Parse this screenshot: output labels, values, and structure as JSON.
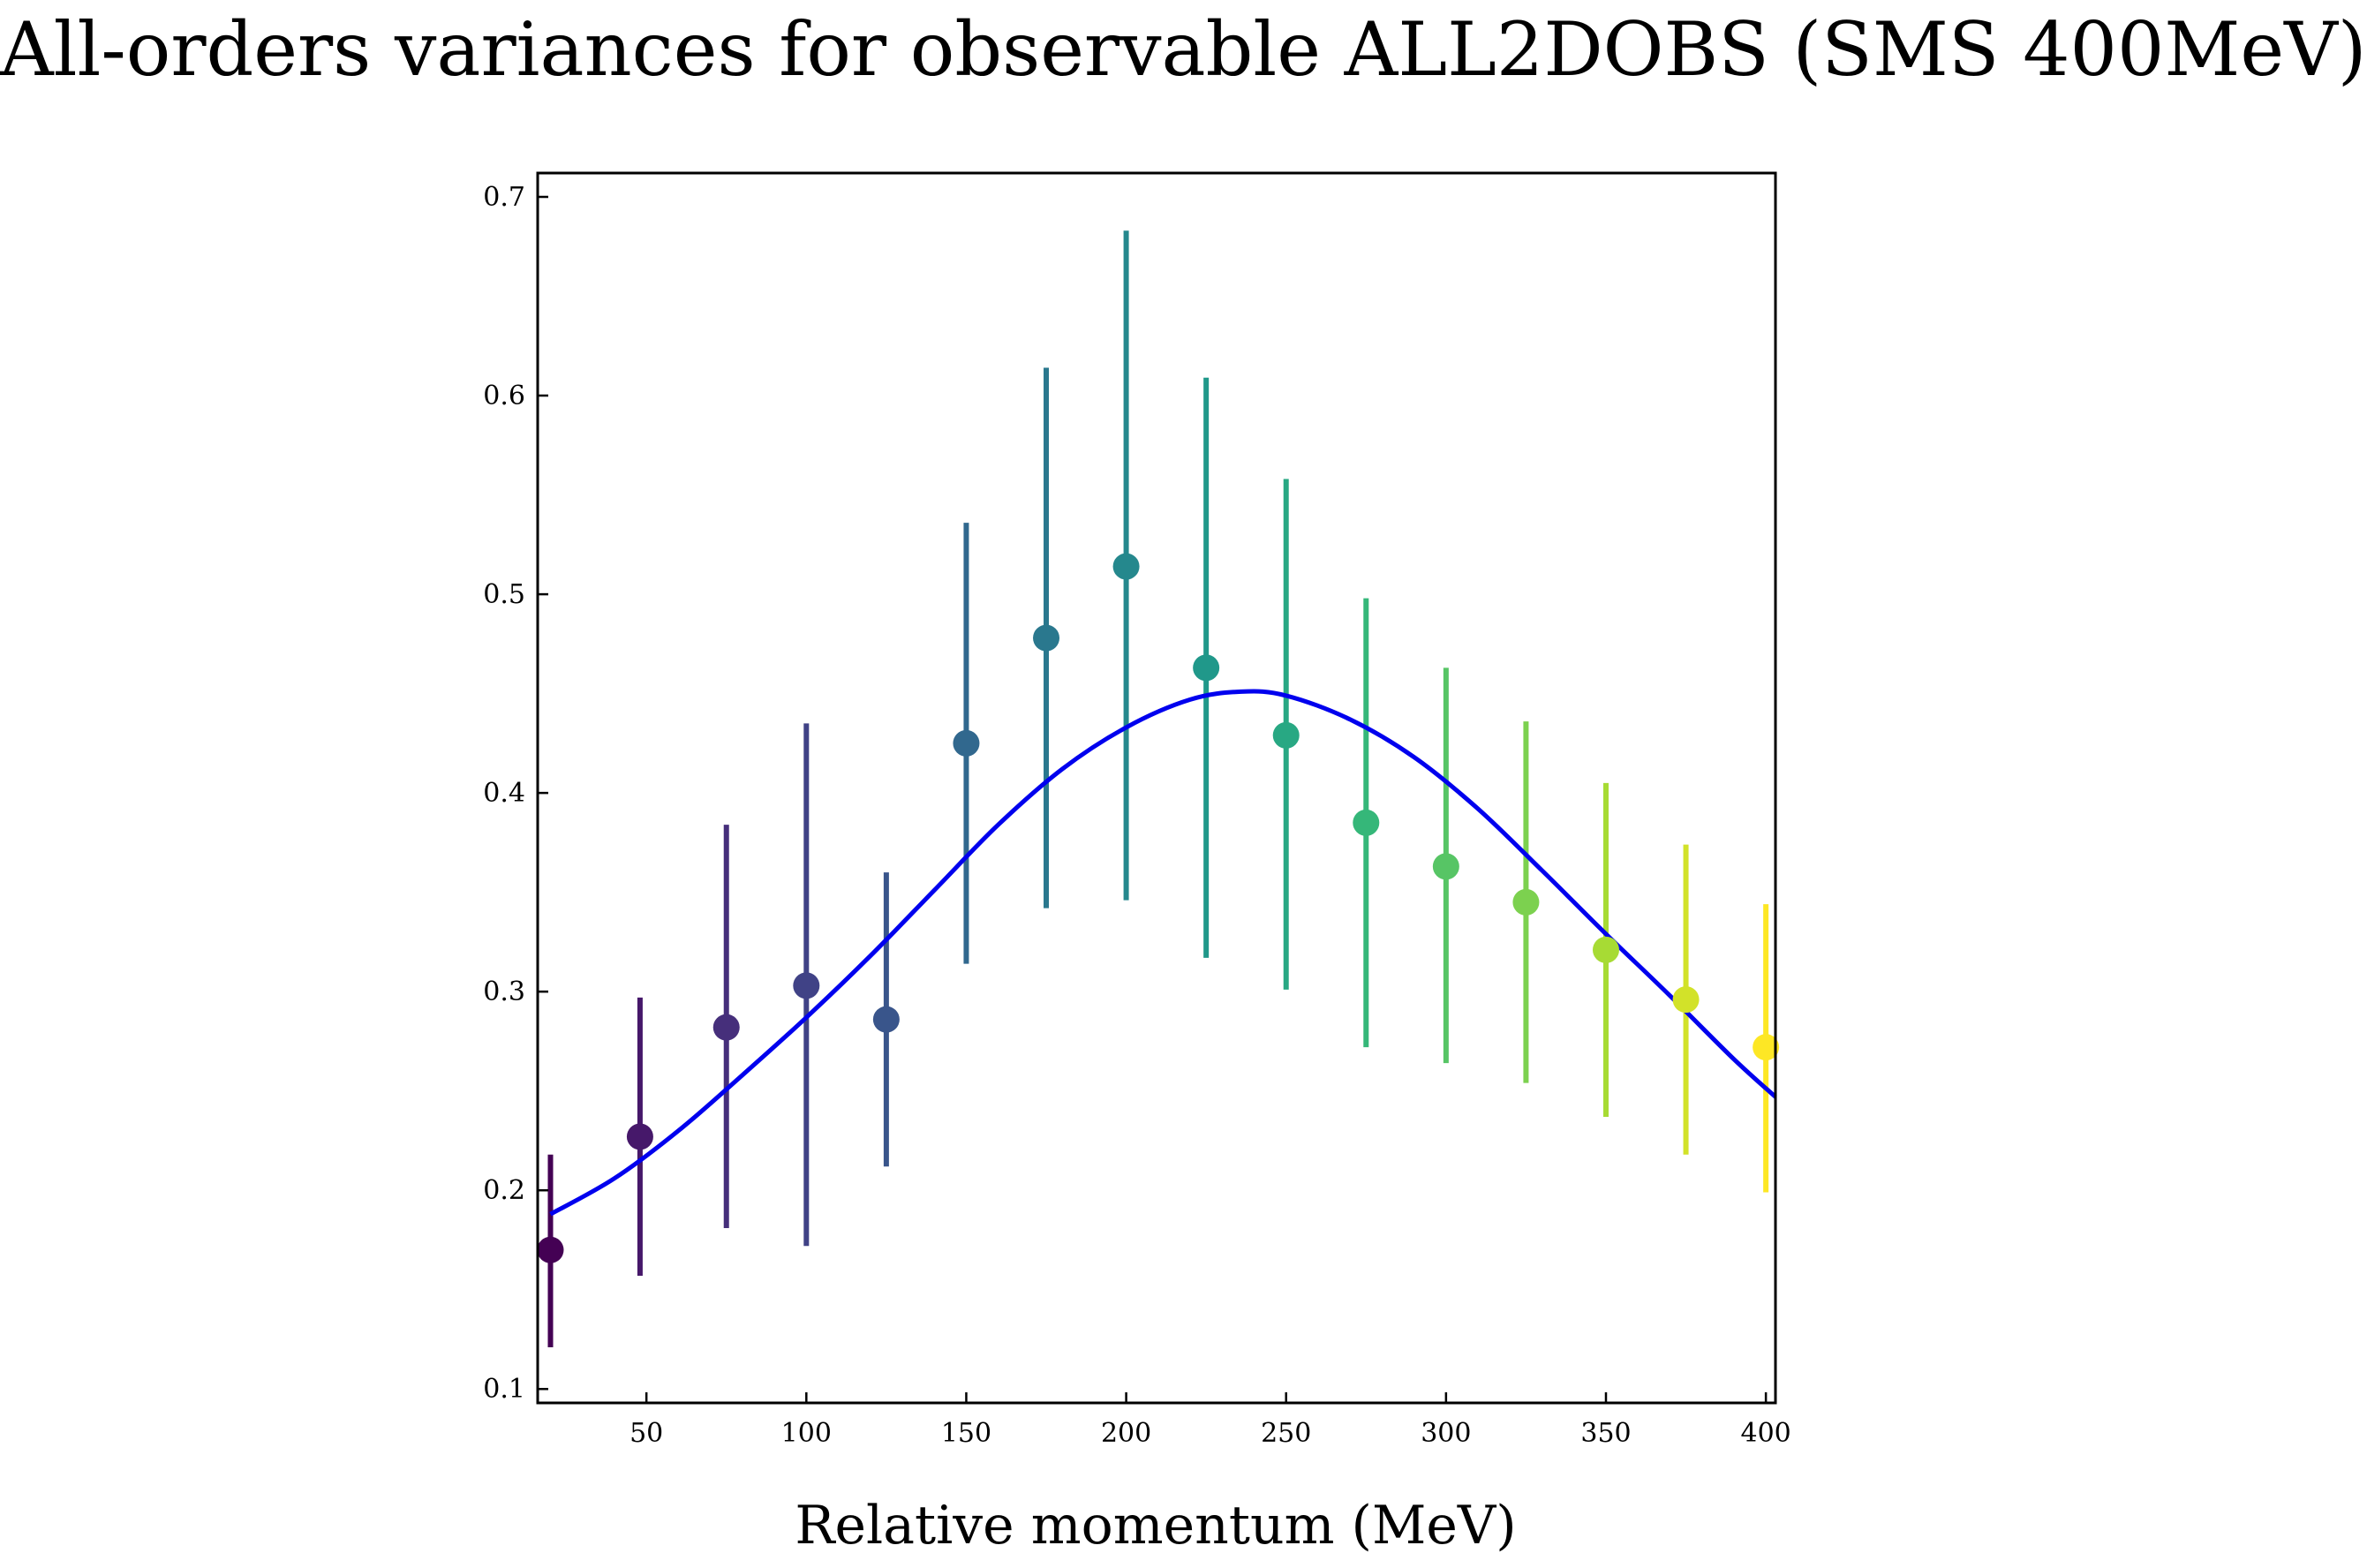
{
  "chart_data": {
    "type": "scatter",
    "title": "All-orders variances for observable ALL2DOBS (SMS 400MeV)",
    "xlabel": "Relative momentum (MeV)",
    "ylabel": "",
    "xlim": [
      16,
      403
    ],
    "ylim": [
      0.093,
      0.712
    ],
    "xticks": [
      50,
      100,
      150,
      200,
      250,
      300,
      350,
      400
    ],
    "yticks": [
      0.1,
      0.2,
      0.3,
      0.4,
      0.5,
      0.6,
      0.7
    ],
    "xtick_labels": [
      "50",
      "100",
      "150",
      "200",
      "250",
      "300",
      "350",
      "400"
    ],
    "ytick_labels": [
      "0.1",
      "0.2",
      "0.3",
      "0.4",
      "0.5",
      "0.6",
      "0.7"
    ],
    "grid": false,
    "legend": "none",
    "points": {
      "x": [
        20,
        48,
        75,
        100,
        125,
        150,
        175,
        200,
        225,
        250,
        275,
        300,
        325,
        350,
        375,
        400
      ],
      "y": [
        0.17,
        0.227,
        0.282,
        0.303,
        0.286,
        0.425,
        0.478,
        0.514,
        0.463,
        0.429,
        0.385,
        0.363,
        0.345,
        0.321,
        0.296,
        0.272
      ],
      "y_low": [
        0.121,
        0.157,
        0.181,
        0.172,
        0.212,
        0.314,
        0.342,
        0.346,
        0.317,
        0.301,
        0.272,
        0.264,
        0.254,
        0.237,
        0.218,
        0.199
      ],
      "y_high": [
        0.218,
        0.297,
        0.384,
        0.435,
        0.36,
        0.536,
        0.614,
        0.683,
        0.609,
        0.558,
        0.498,
        0.463,
        0.436,
        0.405,
        0.374,
        0.344
      ],
      "colormap": "viridis"
    },
    "curve": {
      "x": [
        20,
        40,
        60,
        80,
        100,
        120,
        140,
        160,
        180,
        200,
        220,
        236,
        250,
        270,
        290,
        310,
        330,
        350,
        370,
        390,
        403
      ],
      "y": [
        0.188,
        0.206,
        0.23,
        0.258,
        0.287,
        0.318,
        0.351,
        0.384,
        0.412,
        0.433,
        0.447,
        0.451,
        0.449,
        0.437,
        0.418,
        0.392,
        0.361,
        0.329,
        0.298,
        0.266,
        0.247
      ],
      "color": "#0000ee"
    },
    "colors": {
      "viridis_stops": [
        "#440154",
        "#482878",
        "#3e4989",
        "#31688e",
        "#26828e",
        "#1f9e89",
        "#35b779",
        "#6ece58",
        "#b5de2b",
        "#fde725"
      ],
      "axis": "#000000"
    }
  }
}
